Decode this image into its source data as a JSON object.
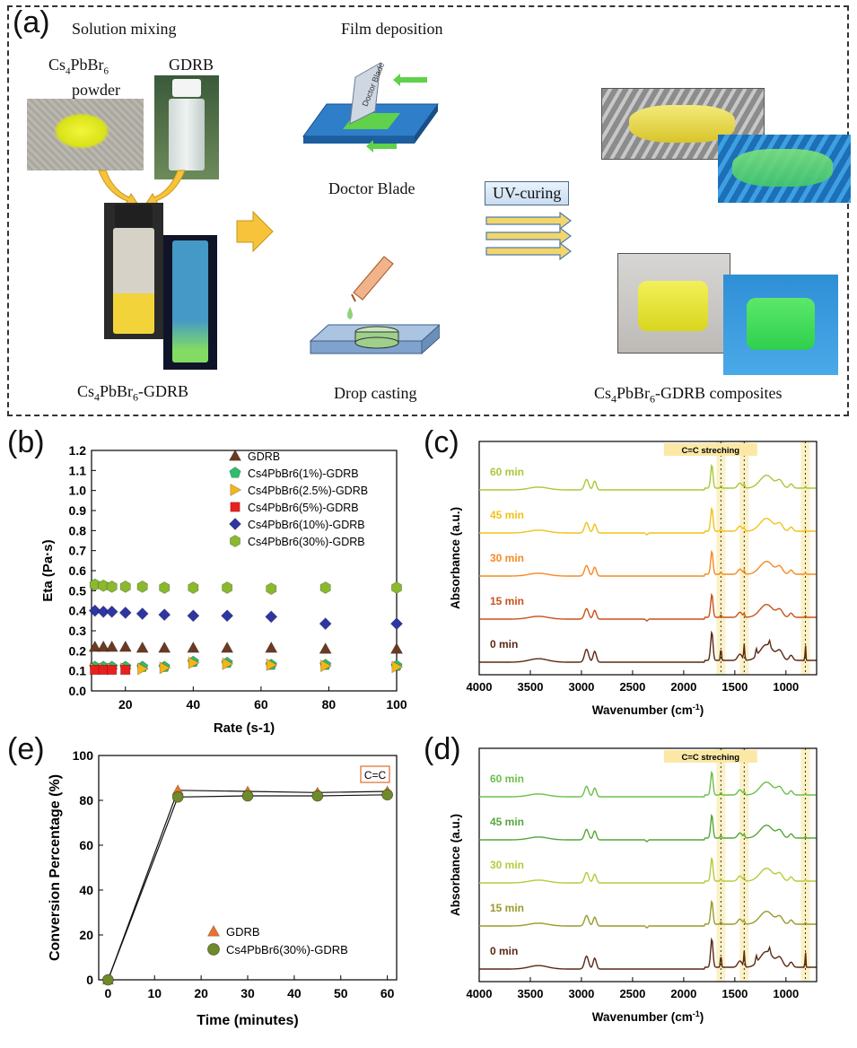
{
  "panel_a": {
    "label": "(a)",
    "step_solution_mixing": "Solution mixing",
    "step_film_deposition": "Film deposition",
    "powder_label_main": "Cs",
    "powder_label_s1": "4",
    "powder_label_mid": "PbBr",
    "powder_label_s2": "6",
    "powder_label_line2": "powder",
    "gdrb_label": "GDRB",
    "doctor_blade": "Doctor Blade",
    "doctor_blade_tool_text": "Doctor Blade",
    "uv_curing": "UV-curing",
    "drop_casting": "Drop casting",
    "mixture_caption": {
      "a": "Cs",
      "s1": "4",
      "b": "PbBr",
      "s2": "6",
      "c": "-GDRB"
    },
    "composites_caption": {
      "a": "Cs",
      "s1": "4",
      "b": "PbBr",
      "s2": "6",
      "c": "-GDRB composites"
    }
  },
  "chart_data": [
    {
      "id": "b",
      "panel_label": "(b)",
      "type": "scatter",
      "xlabel": "Rate (s-1)",
      "ylabel": "Eta (Pa·s)",
      "xlim": [
        10,
        100
      ],
      "ylim": [
        0.0,
        1.2
      ],
      "xticks": [
        20,
        40,
        60,
        80,
        100
      ],
      "yticks": [
        "0.0",
        "0.1",
        "0.2",
        "0.3",
        "0.4",
        "0.5",
        "0.6",
        "0.7",
        "0.8",
        "0.9",
        "1.0",
        "1.1",
        "1.2"
      ],
      "legend_position": "top-right",
      "series": [
        {
          "name": "GDRB",
          "marker": "triangle",
          "color": "#6b3a22",
          "x": [
            11,
            13.5,
            16,
            20,
            25,
            31.5,
            40,
            50,
            63,
            79,
            100
          ],
          "y": [
            0.22,
            0.22,
            0.22,
            0.22,
            0.215,
            0.215,
            0.215,
            0.215,
            0.215,
            0.21,
            0.21
          ]
        },
        {
          "name": "Cs4PbBr6(1%)-GDRB",
          "marker": "pentagon",
          "color": "#2dbd6e",
          "x": [
            11,
            13.5,
            16,
            20,
            25,
            31.5,
            40,
            50,
            63,
            79,
            100
          ],
          "y": [
            0.12,
            0.12,
            0.12,
            0.12,
            0.12,
            0.12,
            0.145,
            0.14,
            0.13,
            0.13,
            0.125
          ]
        },
        {
          "name": "Cs4PbBr6(2.5%)-GDRB",
          "marker": "triangle-right",
          "color": "#f4b51a",
          "x": [
            11,
            13.5,
            16,
            20,
            25,
            31.5,
            40,
            50,
            63,
            79,
            100
          ],
          "y": [
            0.11,
            0.11,
            0.11,
            0.11,
            0.11,
            0.115,
            0.14,
            0.135,
            0.13,
            0.125,
            0.12
          ]
        },
        {
          "name": "Cs4PbBr6(5%)-GDRB",
          "marker": "square",
          "color": "#e8201e",
          "x": [
            11,
            13.5,
            16,
            20
          ],
          "y": [
            0.105,
            0.105,
            0.105,
            0.105
          ]
        },
        {
          "name": "Cs4PbBr6(10%)-GDRB",
          "marker": "diamond",
          "color": "#2e36a3",
          "x": [
            11,
            13.5,
            16,
            20,
            25,
            31.5,
            40,
            50,
            63,
            79,
            100
          ],
          "y": [
            0.4,
            0.395,
            0.395,
            0.39,
            0.385,
            0.38,
            0.375,
            0.375,
            0.37,
            0.335,
            0.335
          ]
        },
        {
          "name": "Cs4PbBr6(30%)-GDRB",
          "marker": "hexagon",
          "color": "#8ab82e",
          "x": [
            11,
            13.5,
            16,
            20,
            25,
            31.5,
            40,
            50,
            63,
            79,
            100
          ],
          "y": [
            0.53,
            0.525,
            0.52,
            0.52,
            0.52,
            0.515,
            0.515,
            0.515,
            0.51,
            0.515,
            0.515
          ]
        }
      ]
    },
    {
      "id": "c",
      "panel_label": "(c)",
      "type": "line",
      "xlabel": "Wavenumber (cm",
      "xlabel_sup": "-1",
      "xlabel_end": ")",
      "ylabel": "Absorbance (a.u.)",
      "xlim": [
        4000,
        700
      ],
      "xticks": [
        4000,
        3500,
        3000,
        2500,
        2000,
        1500,
        1000
      ],
      "annotation": "C=C streching",
      "highlight_bands": [
        1636,
        1408,
        810
      ],
      "series": [
        {
          "name": "60 min",
          "color": "#a9c83a"
        },
        {
          "name": "45 min",
          "color": "#f1c21b"
        },
        {
          "name": "30 min",
          "color": "#f58a22"
        },
        {
          "name": "15 min",
          "color": "#c9511c"
        },
        {
          "name": "0 min",
          "color": "#5a2814"
        }
      ]
    },
    {
      "id": "d",
      "panel_label": "(d)",
      "type": "line",
      "xlabel": "Wavenumber (cm",
      "xlabel_sup": "-1",
      "xlabel_end": ")",
      "ylabel": "Absorbance (a.u.)",
      "xlim": [
        4000,
        700
      ],
      "xticks": [
        4000,
        3500,
        3000,
        2500,
        2000,
        1500,
        1000
      ],
      "annotation": "C=C streching",
      "highlight_bands": [
        1636,
        1408,
        810
      ],
      "series": [
        {
          "name": "60 min",
          "color": "#6cbf4b"
        },
        {
          "name": "45 min",
          "color": "#56a63c"
        },
        {
          "name": "30 min",
          "color": "#b6cb3c"
        },
        {
          "name": "15 min",
          "color": "#9a9a2c"
        },
        {
          "name": "0 min",
          "color": "#5a2814"
        }
      ]
    },
    {
      "id": "e",
      "panel_label": "(e)",
      "type": "line",
      "xlabel": "Time (minutes)",
      "ylabel": "Conversion Percentage (%)",
      "xlim": [
        -2,
        62
      ],
      "ylim": [
        0,
        100
      ],
      "xticks": [
        0,
        10,
        20,
        30,
        40,
        50,
        60
      ],
      "yticks": [
        0,
        20,
        40,
        60,
        80,
        100
      ],
      "annotation": "C=C",
      "legend_position": "bottom-center",
      "series": [
        {
          "name": "GDRB",
          "marker": "triangle",
          "color": "#e8742a",
          "x": [
            0,
            15,
            30,
            45,
            60
          ],
          "y": [
            0,
            84.5,
            84,
            83.5,
            84
          ]
        },
        {
          "name": "Cs4PbBr6(30%)-GDRB",
          "marker": "circle",
          "color": "#6e8a2a",
          "x": [
            0,
            15,
            30,
            45,
            60
          ],
          "y": [
            0,
            81.5,
            82,
            82,
            82.5
          ]
        }
      ]
    }
  ]
}
